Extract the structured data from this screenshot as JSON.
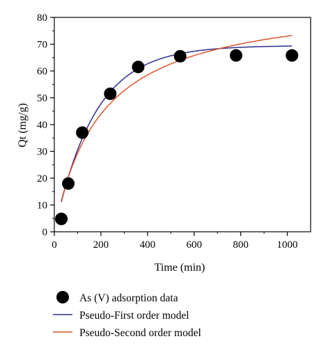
{
  "chart_data": {
    "type": "scatter",
    "title": "",
    "xlabel": "Time (min)",
    "ylabel": "Qt (mg/g)",
    "xlim": [
      0,
      1100
    ],
    "ylim": [
      0,
      80
    ],
    "x_ticks": [
      0,
      200,
      400,
      600,
      800,
      1000
    ],
    "y_ticks": [
      0,
      10,
      20,
      30,
      40,
      50,
      60,
      70,
      80
    ],
    "grid": false,
    "legend_position": "bottom-outside",
    "series": [
      {
        "name": "As (V) adsorption data",
        "kind": "scatter",
        "color": "#000000",
        "x": [
          30,
          60,
          120,
          240,
          360,
          540,
          780,
          1020
        ],
        "y": [
          4.8,
          18.0,
          37.0,
          51.5,
          61.5,
          65.5,
          65.8,
          65.8
        ]
      },
      {
        "name": "Pseudo-First order model",
        "kind": "line",
        "color": "#2b2b8c",
        "model": "pfo",
        "qe": 69.5,
        "k1": 0.0058,
        "x_range": [
          30,
          1020
        ]
      },
      {
        "name": "Pseudo-Second order model",
        "kind": "line",
        "color": "#d9542b",
        "model": "pso",
        "qe": 87.5,
        "k2": 5.76e-05,
        "x_range": [
          30,
          1020
        ]
      }
    ]
  }
}
